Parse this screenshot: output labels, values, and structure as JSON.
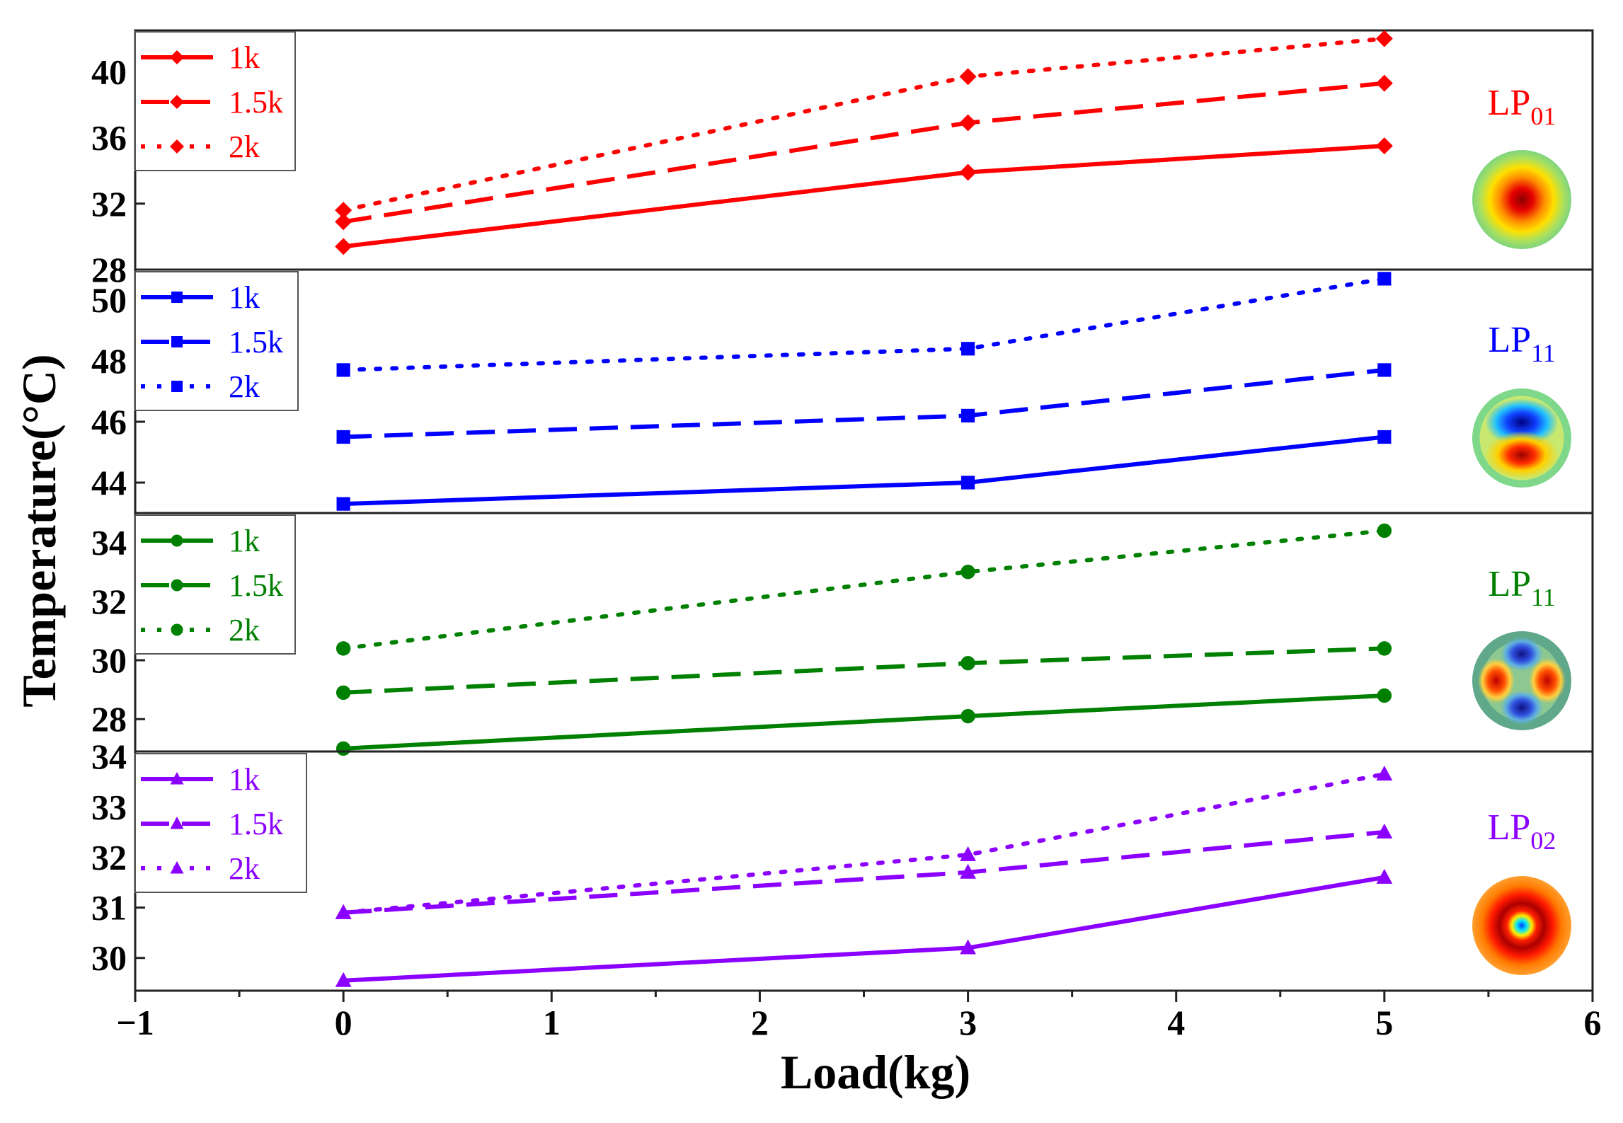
{
  "figure": {
    "xlabel": "Load(kg)",
    "ylabel": "Temperature(°C)"
  },
  "chart_data": [
    {
      "type": "line",
      "mode_label": {
        "base": "LP",
        "sub": "01"
      },
      "color": "#ff0000",
      "marker": "diamond",
      "x_ticks": [
        "−1",
        "0",
        "1",
        "2",
        "3",
        "4",
        "5",
        "6"
      ],
      "xlim": [
        -1,
        6
      ],
      "ylim": [
        28,
        42.5
      ],
      "y_ticks": [
        "28",
        "32",
        "36",
        "40"
      ],
      "legend_position": "top-left",
      "mode_profile": "LP01-icon",
      "series": [
        {
          "name": "1k",
          "dash": "solid",
          "x": [
            0,
            3,
            5
          ],
          "values": [
            29.4,
            33.9,
            35.5
          ]
        },
        {
          "name": "1.5k",
          "dash": "dashed",
          "x": [
            0,
            3,
            5
          ],
          "values": [
            30.9,
            36.9,
            39.3
          ]
        },
        {
          "name": "2k",
          "dash": "dotted",
          "x": [
            0,
            3,
            5
          ],
          "values": [
            31.6,
            39.7,
            42.0
          ]
        }
      ]
    },
    {
      "type": "line",
      "mode_label": {
        "base": "LP",
        "sub": "11"
      },
      "color": "#0000ff",
      "marker": "square",
      "xlim": [
        -1,
        6
      ],
      "ylim": [
        43.0,
        51.0
      ],
      "y_ticks": [
        "44",
        "46",
        "48",
        "50"
      ],
      "legend_position": "top-left",
      "mode_profile": "LP11-even-icon",
      "series": [
        {
          "name": "1k",
          "dash": "solid",
          "x": [
            0,
            3,
            5
          ],
          "values": [
            43.3,
            44.0,
            45.5
          ]
        },
        {
          "name": "1.5k",
          "dash": "dashed",
          "x": [
            0,
            3,
            5
          ],
          "values": [
            45.5,
            46.2,
            47.7
          ]
        },
        {
          "name": "2k",
          "dash": "dotted",
          "x": [
            0,
            3,
            5
          ],
          "values": [
            47.7,
            48.4,
            50.7
          ]
        }
      ]
    },
    {
      "type": "line",
      "mode_label": {
        "base": "LP",
        "sub": "11"
      },
      "color": "#008000",
      "marker": "circle",
      "xlim": [
        -1,
        6
      ],
      "ylim": [
        26.9,
        35.0
      ],
      "y_ticks": [
        "28",
        "30",
        "32",
        "34"
      ],
      "legend_position": "top-left",
      "mode_profile": "LP11-lobes-icon",
      "series": [
        {
          "name": "1k",
          "dash": "solid",
          "x": [
            0,
            3,
            5
          ],
          "values": [
            27.0,
            28.1,
            28.8
          ]
        },
        {
          "name": "1.5k",
          "dash": "dashed",
          "x": [
            0,
            3,
            5
          ],
          "values": [
            28.9,
            29.9,
            30.4
          ]
        },
        {
          "name": "2k",
          "dash": "dotted",
          "x": [
            0,
            3,
            5
          ],
          "values": [
            30.4,
            33.0,
            34.4
          ]
        }
      ]
    },
    {
      "type": "line",
      "mode_label": {
        "base": "LP",
        "sub": "02"
      },
      "color": "#8b00ff",
      "marker": "triangle",
      "xlim": [
        -1,
        6
      ],
      "ylim": [
        29.35,
        34.1
      ],
      "y_ticks": [
        "30",
        "31",
        "32",
        "33",
        "34"
      ],
      "legend_position": "top-left",
      "mode_profile": "LP02-icon",
      "series": [
        {
          "name": "1k",
          "dash": "solid",
          "x": [
            0,
            3,
            5
          ],
          "values": [
            29.55,
            30.2,
            31.6
          ]
        },
        {
          "name": "1.5k",
          "dash": "dashed",
          "x": [
            0,
            3,
            5
          ],
          "values": [
            30.9,
            31.7,
            32.5
          ]
        },
        {
          "name": "2k",
          "dash": "dotted",
          "x": [
            0,
            3,
            5
          ],
          "values": [
            30.9,
            32.05,
            33.65
          ]
        }
      ]
    }
  ]
}
